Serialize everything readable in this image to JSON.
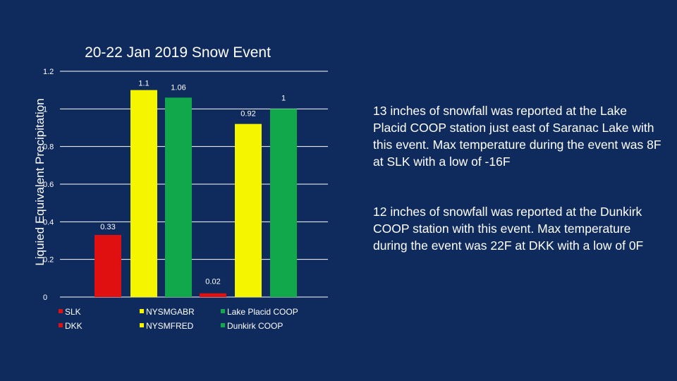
{
  "chart_data": {
    "type": "bar",
    "title": "20-22 Jan 2019 Snow Event",
    "xlabel": "",
    "ylabel": "Liquied Equivalent Precipitation",
    "ylim": [
      0,
      1.2
    ],
    "yticks": [
      0,
      0.2,
      0.4,
      0.6,
      0.8,
      1,
      1.2
    ],
    "ytick_labels": [
      "0",
      "0.2",
      "0.4",
      "0.6",
      "0.8",
      "1",
      "1.2"
    ],
    "grid": true,
    "legend_position": "bottom",
    "series": [
      {
        "name": "SLK",
        "value": 0.33,
        "label": "0.33",
        "color": "#e01010"
      },
      {
        "name": "NYSMGABR",
        "value": 1.1,
        "label": "1.1",
        "color": "#f5f500"
      },
      {
        "name": "Lake Placid COOP",
        "value": 1.06,
        "label": "1.06",
        "color": "#10a84a"
      },
      {
        "name": "DKK",
        "value": 0.02,
        "label": "0.02",
        "color": "#e01010"
      },
      {
        "name": "NYSMFRED",
        "value": 0.92,
        "label": "0.92",
        "color": "#f5f500"
      },
      {
        "name": "Dunkirk COOP",
        "value": 1,
        "label": "1",
        "color": "#10a84a"
      }
    ]
  },
  "notes": [
    "13 inches of snowfall was reported at the Lake Placid COOP station just east of Saranac Lake with this event. Max temperature during the event was 8F at SLK with a low of -16F",
    "12 inches of snowfall was reported at the Dunkirk COOP station with this event. Max temperature during the event was 22F at DKK with a low of 0F"
  ],
  "colors": {
    "background": "#0f2a5c",
    "text": "#ffffff",
    "grid": "#ffffff"
  }
}
